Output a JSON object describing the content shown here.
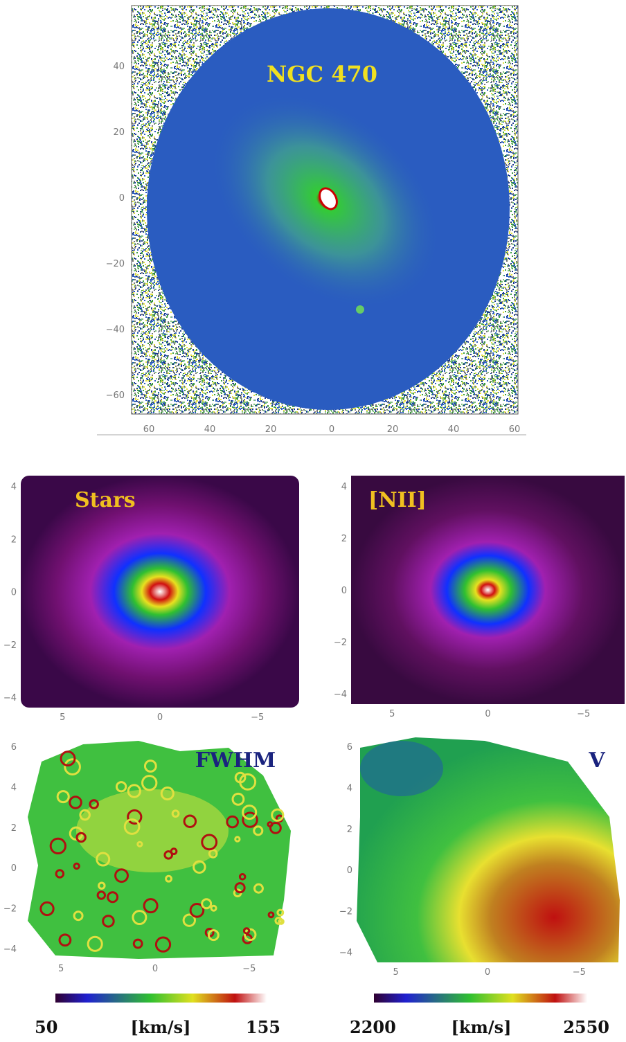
{
  "main": {
    "title": "NGC 470",
    "yticks": [
      "40",
      "20",
      "0",
      "−20",
      "−40",
      "−60"
    ],
    "xticks": [
      "60",
      "40",
      "20",
      "0",
      "20",
      "40",
      "60"
    ]
  },
  "panels": [
    {
      "label": "Stars",
      "yticks": [
        "4",
        "2",
        "0",
        "−2",
        "−4"
      ],
      "xticks": [
        "5",
        "0",
        "−5"
      ]
    },
    {
      "label": "[NII]",
      "yticks": [
        "4",
        "2",
        "0",
        "−2",
        "−4"
      ],
      "xticks": [
        "5",
        "0",
        "−5"
      ]
    },
    {
      "label": "FWHM",
      "yticks": [
        "6",
        "4",
        "2",
        "0",
        "−2",
        "−4"
      ],
      "xticks": [
        "5",
        "0",
        "−5"
      ]
    },
    {
      "label": "V",
      "yticks": [
        "6",
        "4",
        "2",
        "0",
        "−2",
        "−4"
      ],
      "xticks": [
        "5",
        "0",
        "−5"
      ]
    }
  ],
  "colorbars": [
    {
      "min": "50",
      "unit": "[km/s]",
      "max": "155"
    },
    {
      "min": "2200",
      "unit": "[km/s]",
      "max": "2550"
    }
  ]
}
